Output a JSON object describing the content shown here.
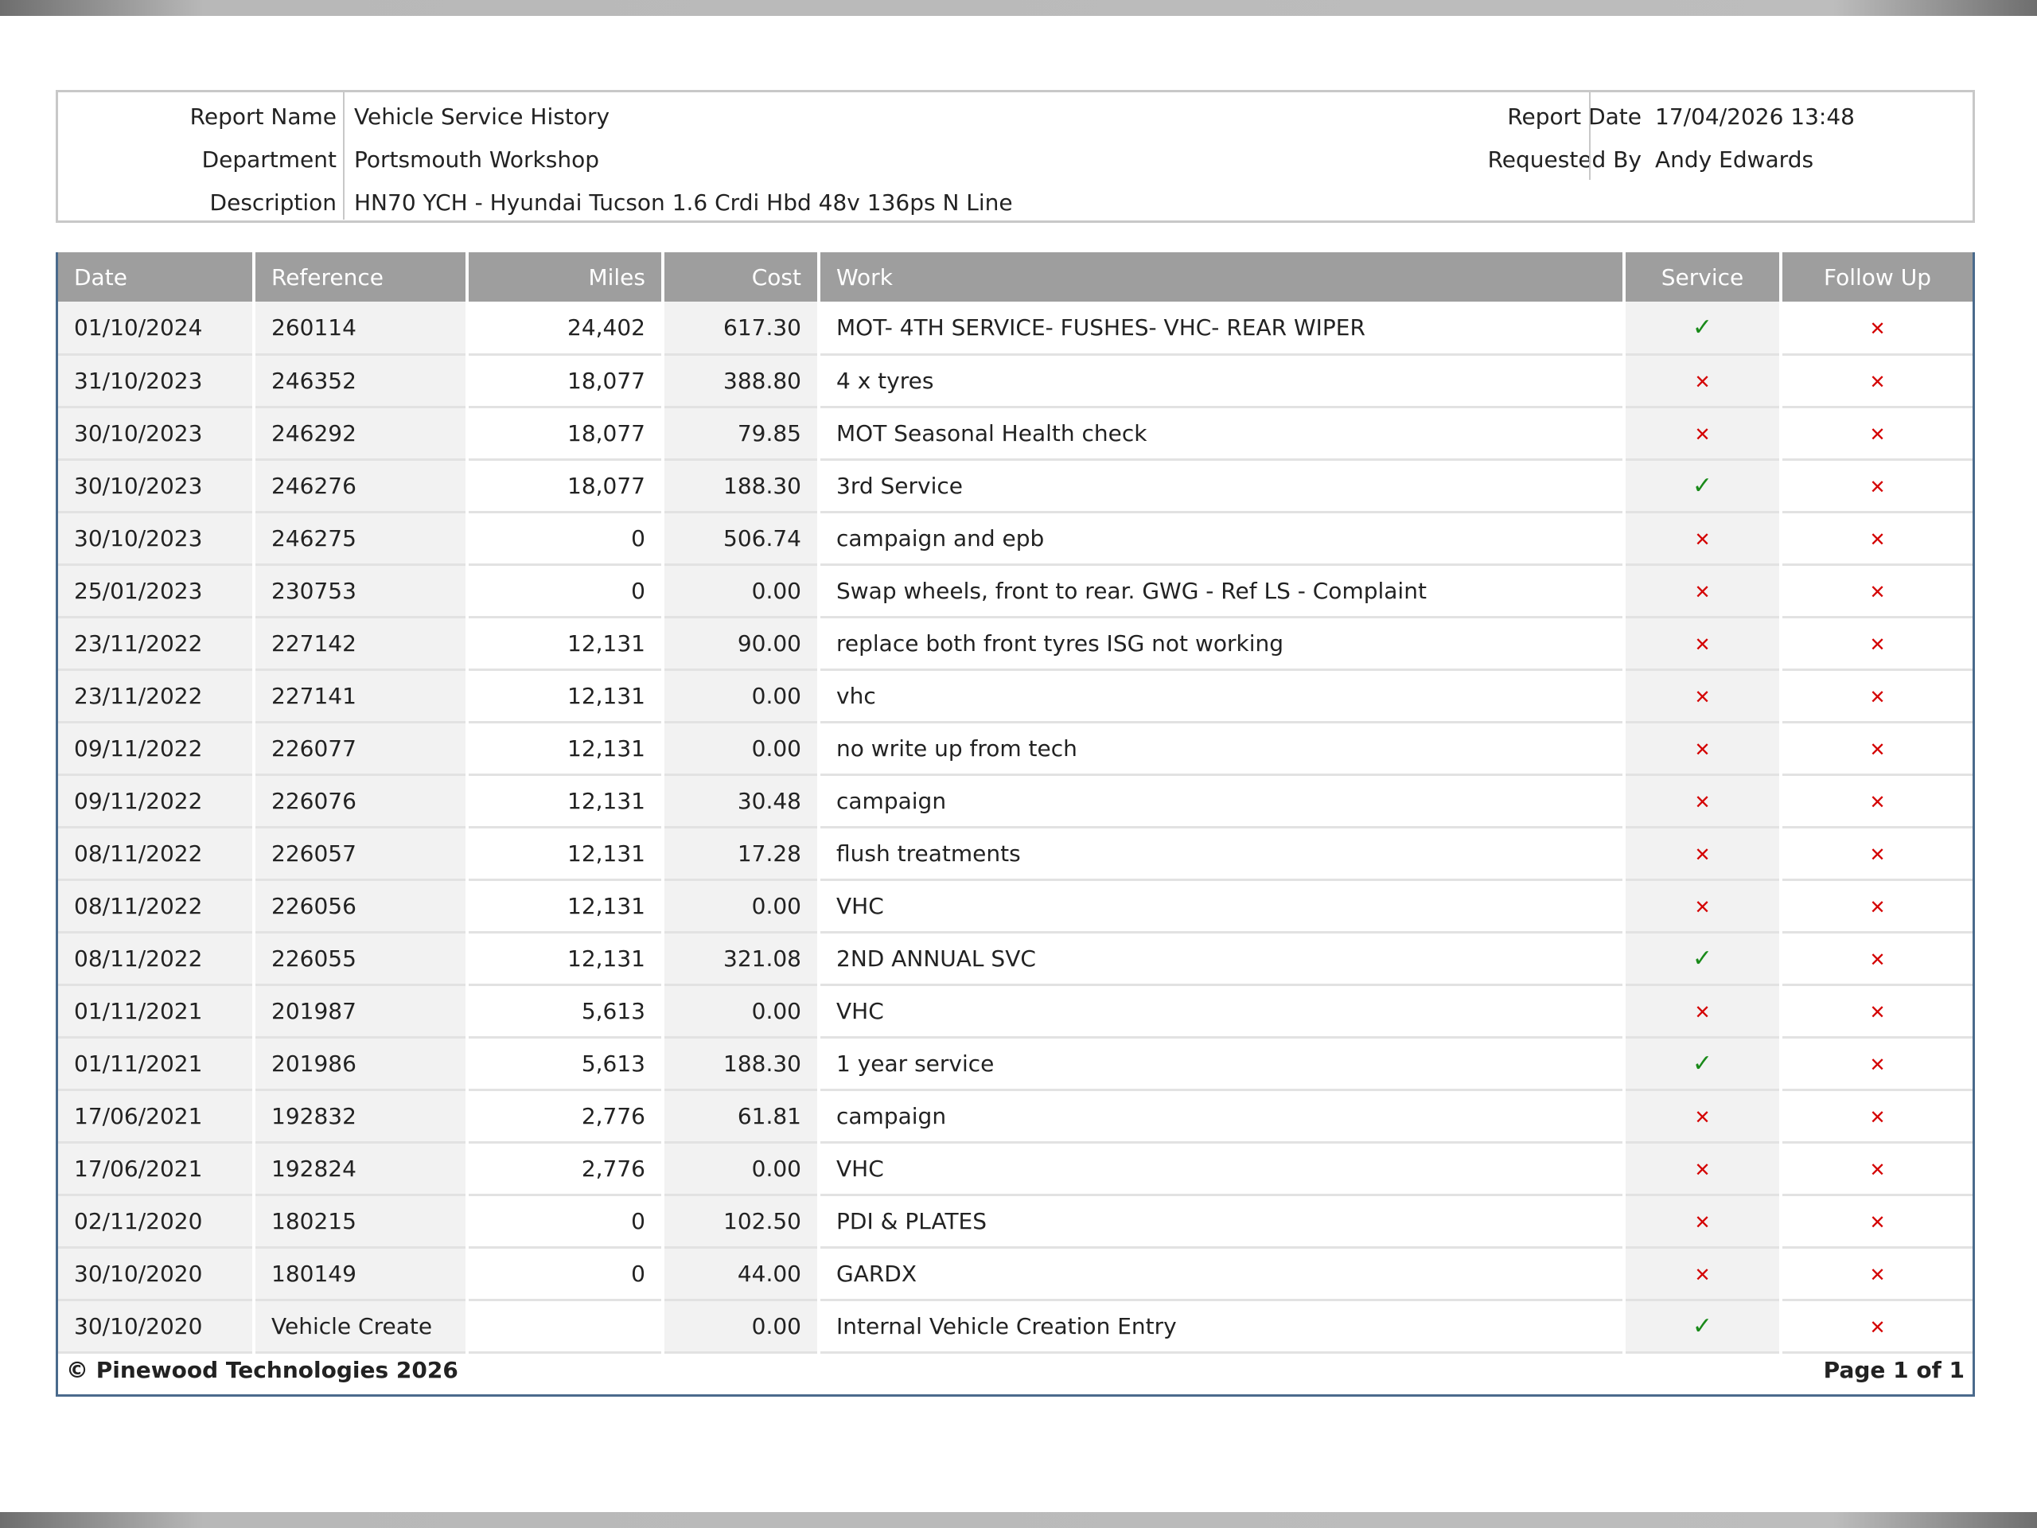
{
  "report": {
    "name_label": "Report Name",
    "name": "Vehicle Service History",
    "department_label": "Department",
    "department": "Portsmouth Workshop",
    "description_label": "Description",
    "description": "HN70 YCH - Hyundai Tucson 1.6 Crdi Hbd 48v 136ps N Line",
    "date_label": "Report Date",
    "date": "17/04/2026 13:48",
    "requested_label": "Requested By",
    "requested_by": "Andy Edwards"
  },
  "table": {
    "headers": [
      "Date",
      "Reference",
      "Miles",
      "Cost",
      "Work",
      "Service",
      "Follow Up"
    ],
    "rows": [
      {
        "date": "01/10/2024",
        "reference": "260114",
        "miles": "24,402",
        "cost": "617.30",
        "work": "MOT- 4TH SERVICE- FUSHES- VHC- REAR WIPER",
        "service": true,
        "follow_up": false
      },
      {
        "date": "31/10/2023",
        "reference": "246352",
        "miles": "18,077",
        "cost": "388.80",
        "work": "4 x tyres",
        "service": false,
        "follow_up": false
      },
      {
        "date": "30/10/2023",
        "reference": "246292",
        "miles": "18,077",
        "cost": "79.85",
        "work": "MOT Seasonal Health check",
        "service": false,
        "follow_up": false
      },
      {
        "date": "30/10/2023",
        "reference": "246276",
        "miles": "18,077",
        "cost": "188.30",
        "work": "3rd Service",
        "service": true,
        "follow_up": false
      },
      {
        "date": "30/10/2023",
        "reference": "246275",
        "miles": "0",
        "cost": "506.74",
        "work": "campaign and epb",
        "service": false,
        "follow_up": false
      },
      {
        "date": "25/01/2023",
        "reference": "230753",
        "miles": "0",
        "cost": "0.00",
        "work": "Swap wheels, front to rear. GWG - Ref LS - Complaint",
        "service": false,
        "follow_up": false
      },
      {
        "date": "23/11/2022",
        "reference": "227142",
        "miles": "12,131",
        "cost": "90.00",
        "work": "replace both front tyres ISG not working",
        "service": false,
        "follow_up": false
      },
      {
        "date": "23/11/2022",
        "reference": "227141",
        "miles": "12,131",
        "cost": "0.00",
        "work": "vhc",
        "service": false,
        "follow_up": false
      },
      {
        "date": "09/11/2022",
        "reference": "226077",
        "miles": "12,131",
        "cost": "0.00",
        "work": "no write up from tech",
        "service": false,
        "follow_up": false
      },
      {
        "date": "09/11/2022",
        "reference": "226076",
        "miles": "12,131",
        "cost": "30.48",
        "work": "campaign",
        "service": false,
        "follow_up": false
      },
      {
        "date": "08/11/2022",
        "reference": "226057",
        "miles": "12,131",
        "cost": "17.28",
        "work": "flush treatments",
        "service": false,
        "follow_up": false
      },
      {
        "date": "08/11/2022",
        "reference": "226056",
        "miles": "12,131",
        "cost": "0.00",
        "work": "VHC",
        "service": false,
        "follow_up": false
      },
      {
        "date": "08/11/2022",
        "reference": "226055",
        "miles": "12,131",
        "cost": "321.08",
        "work": "2ND ANNUAL SVC",
        "service": true,
        "follow_up": false
      },
      {
        "date": "01/11/2021",
        "reference": "201987",
        "miles": "5,613",
        "cost": "0.00",
        "work": "VHC",
        "service": false,
        "follow_up": false
      },
      {
        "date": "01/11/2021",
        "reference": "201986",
        "miles": "5,613",
        "cost": "188.30",
        "work": "1 year service",
        "service": true,
        "follow_up": false
      },
      {
        "date": "17/06/2021",
        "reference": "192832",
        "miles": "2,776",
        "cost": "61.81",
        "work": "campaign",
        "service": false,
        "follow_up": false
      },
      {
        "date": "17/06/2021",
        "reference": "192824",
        "miles": "2,776",
        "cost": "0.00",
        "work": "VHC",
        "service": false,
        "follow_up": false
      },
      {
        "date": "02/11/2020",
        "reference": "180215",
        "miles": "0",
        "cost": "102.50",
        "work": "PDI & PLATES",
        "service": false,
        "follow_up": false
      },
      {
        "date": "30/10/2020",
        "reference": "180149",
        "miles": "0",
        "cost": "44.00",
        "work": "GARDX",
        "service": false,
        "follow_up": false
      },
      {
        "date": "30/10/2020",
        "reference": "Vehicle Create",
        "miles": "",
        "cost": "0.00",
        "work": "Internal Vehicle Creation Entry",
        "service": true,
        "follow_up": false
      }
    ],
    "tick_symbol": "✓",
    "cross_symbol": "✕",
    "tick_color": "#1a8a1a",
    "cross_color": "#d40000",
    "header_bg": "#9e9e9e"
  },
  "footer": {
    "copyright": "© Pinewood Technologies 2026",
    "page": "Page 1 of 1"
  }
}
